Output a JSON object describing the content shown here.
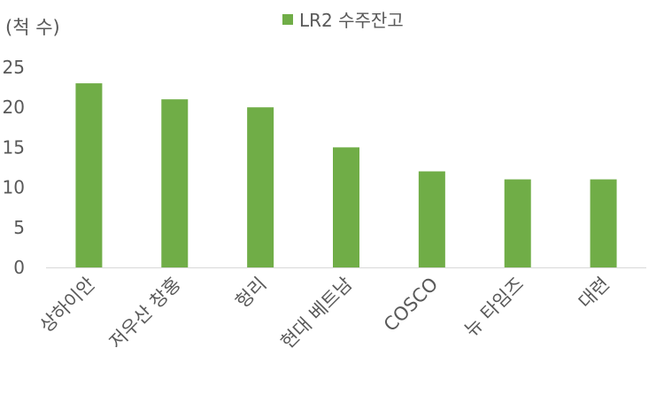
{
  "chart_data": {
    "type": "bar",
    "title": "",
    "ylabel": "(척 수)",
    "xlabel": "",
    "categories": [
      "상하이안",
      "저우산 창홍",
      "헝리",
      "현대 베트남",
      "COSCO",
      "뉴 타임즈",
      "대련"
    ],
    "series": [
      {
        "name": "LR2 수주잔고",
        "values": [
          23,
          21,
          20,
          15,
          12,
          11,
          11
        ],
        "color": "#70AD47"
      }
    ],
    "ylim": [
      0,
      25
    ],
    "yticks": [
      0,
      5,
      10,
      15,
      20,
      25
    ],
    "grid": false,
    "legend": "top"
  }
}
